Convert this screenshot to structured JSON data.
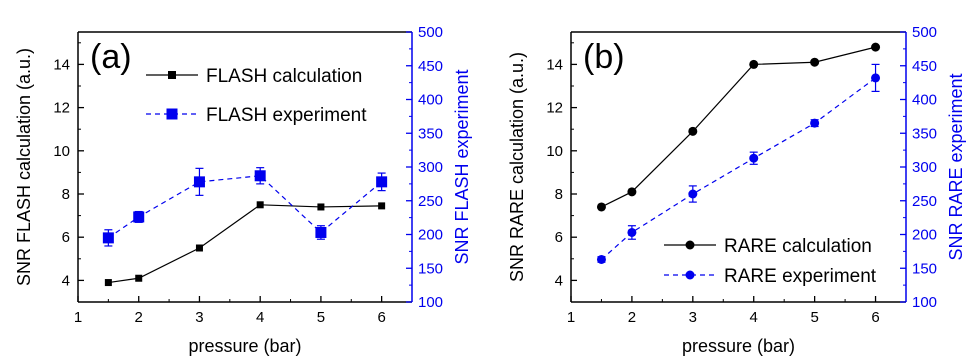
{
  "chart_data": [
    {
      "type": "line",
      "panel_label": "(a)",
      "xlabel": "pressure (bar)",
      "ylabel_left": "SNR FLASH calculation (a.u.)",
      "ylabel_right": "SNR FLASH experiment",
      "xlim": [
        1,
        6.5
      ],
      "ylim_left": [
        3,
        15.5
      ],
      "ylim_right": [
        100,
        500
      ],
      "xticks": [
        1,
        2,
        3,
        4,
        5,
        6
      ],
      "yticks_left": [
        4,
        6,
        8,
        10,
        12,
        14
      ],
      "yticks_right": [
        100,
        150,
        200,
        250,
        300,
        350,
        400,
        450,
        500
      ],
      "legend_position": "top-right",
      "series": [
        {
          "name": "FLASH calculation",
          "axis": "left",
          "marker": "square",
          "line": "solid",
          "color": "#000000",
          "x": [
            1.5,
            2,
            3,
            4,
            5,
            6
          ],
          "y": [
            3.9,
            4.1,
            5.5,
            7.5,
            7.4,
            7.45
          ]
        },
        {
          "name": "FLASH experiment",
          "axis": "right",
          "marker": "square",
          "line": "dashed",
          "color": "#0000ee",
          "x": [
            1.5,
            2,
            3,
            4,
            5,
            6
          ],
          "y": [
            195,
            226,
            278,
            287,
            203,
            278
          ],
          "error": [
            12,
            8,
            20,
            12,
            10,
            13
          ]
        }
      ]
    },
    {
      "type": "line",
      "panel_label": "(b)",
      "xlabel": "pressure (bar)",
      "ylabel_left": "SNR RARE calculation (a.u.)",
      "ylabel_right": "SNR RARE experiment",
      "xlim": [
        1,
        6.5
      ],
      "ylim_left": [
        3,
        15.5
      ],
      "ylim_right": [
        100,
        500
      ],
      "xticks": [
        1,
        2,
        3,
        4,
        5,
        6
      ],
      "yticks_left": [
        4,
        6,
        8,
        10,
        12,
        14
      ],
      "yticks_right": [
        100,
        150,
        200,
        250,
        300,
        350,
        400,
        450,
        500
      ],
      "legend_position": "bottom-right",
      "series": [
        {
          "name": "RARE calculation",
          "axis": "left",
          "marker": "circle",
          "line": "solid",
          "color": "#000000",
          "x": [
            1.5,
            2,
            3,
            4,
            5,
            6
          ],
          "y": [
            7.4,
            8.1,
            10.9,
            14.0,
            14.1,
            14.8
          ]
        },
        {
          "name": "RARE experiment",
          "axis": "right",
          "marker": "circle",
          "line": "dashed",
          "color": "#0000ee",
          "x": [
            1.5,
            2,
            3,
            4,
            5,
            6
          ],
          "y": [
            163,
            203,
            260,
            313,
            365,
            432
          ],
          "error": [
            4,
            10,
            12,
            9,
            5,
            20
          ]
        }
      ]
    }
  ]
}
